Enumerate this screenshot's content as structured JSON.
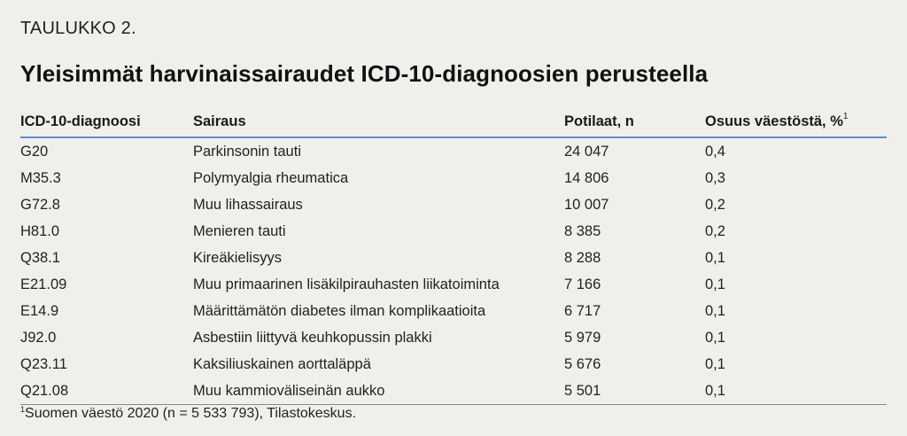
{
  "label": "TAULUKKO 2.",
  "title": "Yleisimmät harvinaissairaudet ICD-10-diagnoosien perusteella",
  "table": {
    "headers": [
      "ICD-10-diagnoosi",
      "Sairaus",
      "Potilaat, n",
      "Osuus väestöstä, %"
    ],
    "header_sup": "1",
    "rows": [
      [
        "G20",
        "Parkinsonin tauti",
        "24 047",
        "0,4"
      ],
      [
        "M35.3",
        "Polymyalgia rheumatica",
        "14 806",
        "0,3"
      ],
      [
        "G72.8",
        "Muu lihassairaus",
        "10 007",
        "0,2"
      ],
      [
        "H81.0",
        "Menieren tauti",
        "8 385",
        "0,2"
      ],
      [
        "Q38.1",
        "Kireäkielisyys",
        "8 288",
        "0,1"
      ],
      [
        "E21.09",
        "Muu primaarinen lisäkilpirauhasten liikatoiminta",
        "7 166",
        "0,1"
      ],
      [
        "E14.9",
        "Määrittämätön diabetes ilman komplikaatioita",
        "6 717",
        "0,1"
      ],
      [
        "J92.0",
        "Asbestiin liittyvä keuhkopussin plakki",
        "5 979",
        "0,1"
      ],
      [
        "Q23.11",
        "Kaksiliuskainen aorttaläppä",
        "5 676",
        "0,1"
      ],
      [
        "Q21.08",
        "Muu kammioväliseinän aukko",
        "5 501",
        "0,1"
      ]
    ]
  },
  "footnote": {
    "marker": "1",
    "text": "Suomen väestö 2020 (n = 5 533 793), Tilastokeskus."
  },
  "colors": {
    "background": "#f0efeb",
    "header_rule": "#5b8fcf"
  }
}
